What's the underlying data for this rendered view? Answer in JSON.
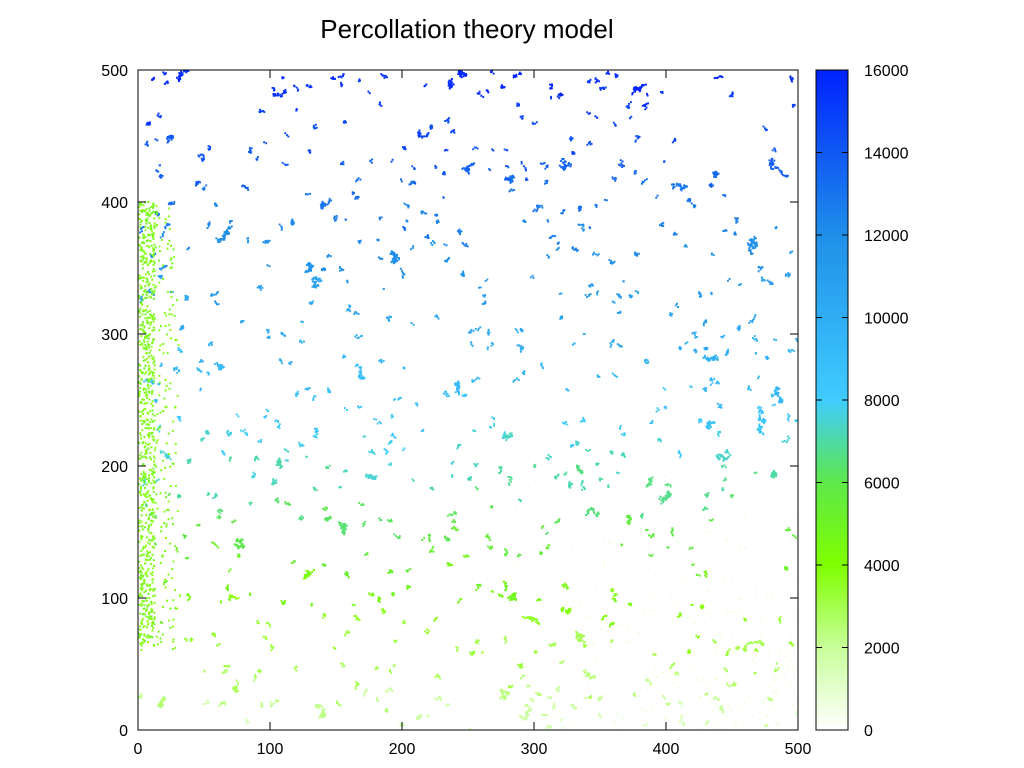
{
  "chart_data": {
    "type": "heatmap",
    "title": "Percollation theory model",
    "xlabel": "",
    "ylabel": "",
    "xlim": [
      0,
      500
    ],
    "ylim": [
      0,
      500
    ],
    "x_ticks": [
      0,
      100,
      200,
      300,
      400,
      500
    ],
    "y_ticks": [
      0,
      100,
      200,
      300,
      400,
      500
    ],
    "colorbar": {
      "range": [
        0,
        16000
      ],
      "ticks": [
        0,
        2000,
        4000,
        6000,
        8000,
        10000,
        12000,
        14000,
        16000
      ],
      "stops": [
        {
          "value": 0,
          "color": "#ffffff"
        },
        {
          "value": 2000,
          "color": "#c8ff9a"
        },
        {
          "value": 4000,
          "color": "#7fff00"
        },
        {
          "value": 6000,
          "color": "#5ee84a"
        },
        {
          "value": 8000,
          "color": "#40ccff"
        },
        {
          "value": 12000,
          "color": "#1f8fe8"
        },
        {
          "value": 16000,
          "color": "#0022ff"
        }
      ]
    },
    "background_color": "#ffffff",
    "grid": false,
    "colorbar_placement": "right"
  }
}
